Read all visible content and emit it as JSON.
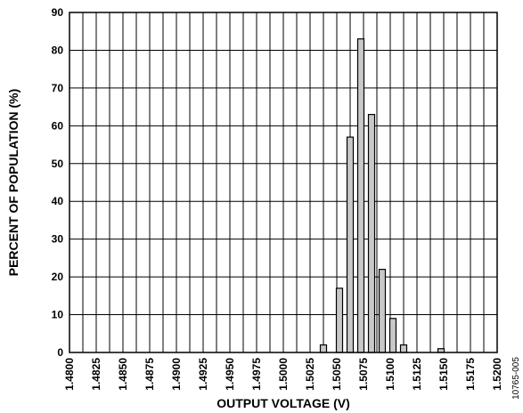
{
  "chart_data": {
    "type": "bar",
    "xlabel": "OUTPUT VOLTAGE (V)",
    "ylabel": "PERCENT OF POPULATION (%)",
    "figure_id": "10765-005",
    "ylim": [
      0,
      90
    ],
    "yticks": [
      0,
      10,
      20,
      30,
      40,
      50,
      60,
      70,
      80,
      90
    ],
    "xlim": [
      1.48,
      1.52
    ],
    "xticks": [
      "1.4800",
      "1.4825",
      "1.4850",
      "1.4875",
      "1.4900",
      "1.4925",
      "1.4950",
      "1.4975",
      "1.5000",
      "1.5025",
      "1.5050",
      "1.5075",
      "1.5100",
      "1.5125",
      "1.5150",
      "1.5175",
      "1.5200"
    ],
    "grid": true,
    "colors": {
      "bar_fill": "#c8c8c8",
      "bar_stroke": "#000000",
      "grid": "#000000"
    },
    "bars": [
      {
        "x": 1.50375,
        "value": 2
      },
      {
        "x": 1.50525,
        "value": 17
      },
      {
        "x": 1.50625,
        "value": 57
      },
      {
        "x": 1.50725,
        "value": 83
      },
      {
        "x": 1.50825,
        "value": 63
      },
      {
        "x": 1.50925,
        "value": 22
      },
      {
        "x": 1.51025,
        "value": 9
      },
      {
        "x": 1.51125,
        "value": 2
      },
      {
        "x": 1.51475,
        "value": 1
      }
    ]
  }
}
